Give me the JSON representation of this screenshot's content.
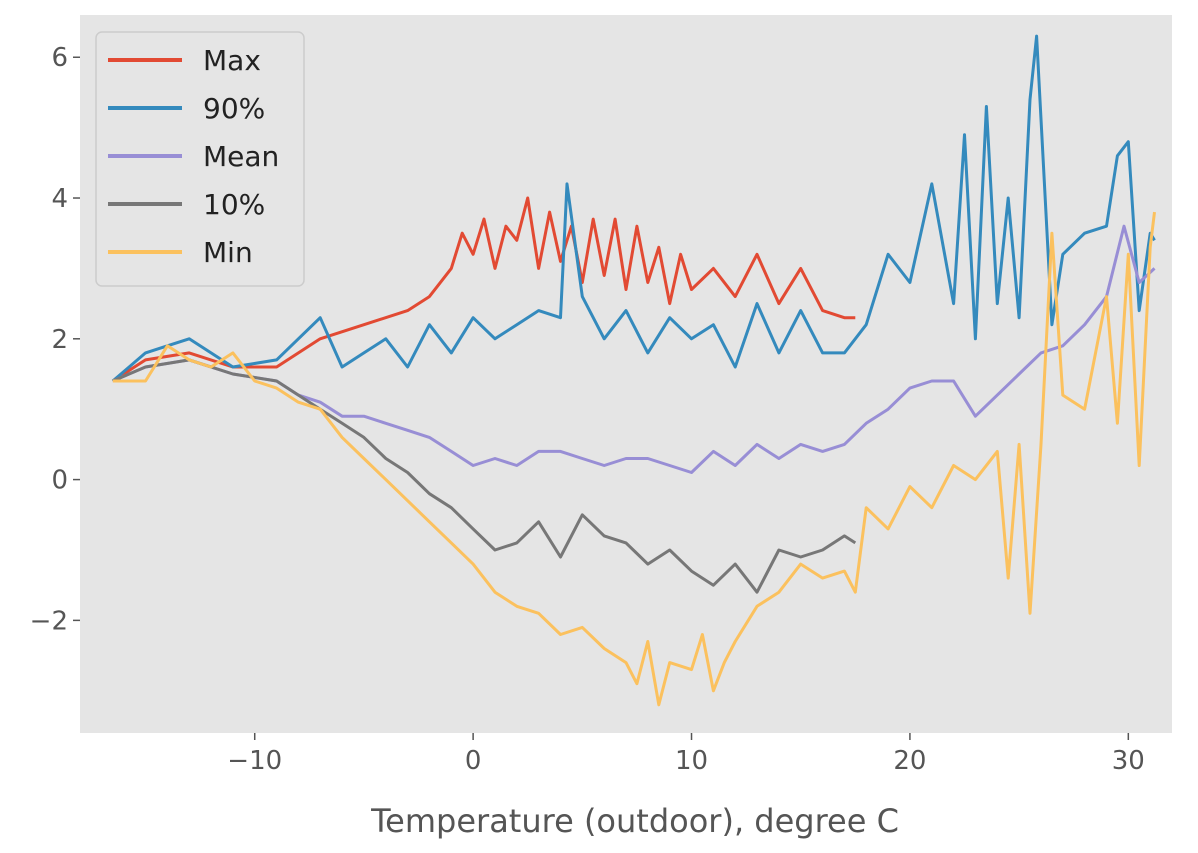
{
  "chart_data": {
    "type": "line",
    "title": "",
    "xlabel": "Temperature (outdoor), degree C",
    "ylabel": "",
    "xlim": [
      -18,
      32
    ],
    "ylim": [
      -3.6,
      6.6
    ],
    "xticks": [
      -10,
      0,
      10,
      20,
      30
    ],
    "yticks": [
      -2,
      0,
      2,
      4,
      6
    ],
    "xtick_labels": [
      "−10",
      "0",
      "10",
      "20",
      "30"
    ],
    "ytick_labels": [
      "−2",
      "0",
      "2",
      "4",
      "6"
    ],
    "grid": false,
    "legend": {
      "placement": "top-left",
      "entries": [
        "Max",
        "90%",
        "Mean",
        "10%",
        "Min"
      ]
    },
    "colors": {
      "background": "#e5e5e5",
      "Max": "#e24a33",
      "90%": "#348abd",
      "Mean": "#988ed5",
      "10%": "#777777",
      "Min": "#fbc15e"
    },
    "series": [
      {
        "name": "Max",
        "x": [
          -16.5,
          -15,
          -13,
          -11,
          -9,
          -7,
          -5,
          -3,
          -2,
          -1,
          -0.5,
          0,
          0.5,
          1,
          1.5,
          2,
          2.5,
          3,
          3.5,
          4,
          4.5,
          5,
          5.5,
          6,
          6.5,
          7,
          7.5,
          8,
          8.5,
          9,
          9.5,
          10,
          11,
          12,
          13,
          14,
          15,
          16,
          17,
          17.5
        ],
        "y": [
          1.4,
          1.7,
          1.8,
          1.6,
          1.6,
          2.0,
          2.2,
          2.4,
          2.6,
          3.0,
          3.5,
          3.2,
          3.7,
          3.0,
          3.6,
          3.4,
          4.0,
          3.0,
          3.8,
          3.1,
          3.6,
          2.8,
          3.7,
          2.9,
          3.7,
          2.7,
          3.6,
          2.8,
          3.3,
          2.5,
          3.2,
          2.7,
          3.0,
          2.6,
          3.2,
          2.5,
          3.0,
          2.4,
          2.3,
          2.3
        ]
      },
      {
        "name": "90%",
        "x": [
          -16.5,
          -15,
          -14,
          -13,
          -11,
          -9,
          -8,
          -7,
          -6,
          -5,
          -4,
          -3,
          -2,
          -1,
          0,
          1,
          2,
          3,
          4,
          4.3,
          5,
          6,
          7,
          8,
          9,
          10,
          11,
          12,
          13,
          14,
          15,
          16,
          17,
          18,
          19,
          20,
          21,
          22,
          22.5,
          23,
          23.5,
          24,
          24.5,
          25,
          25.5,
          25.8,
          26.5,
          27,
          28,
          29,
          29.5,
          30,
          30.5,
          31,
          31.2
        ],
        "y": [
          1.4,
          1.8,
          1.9,
          2.0,
          1.6,
          1.7,
          2.0,
          2.3,
          1.6,
          1.8,
          2.0,
          1.6,
          2.2,
          1.8,
          2.3,
          2.0,
          2.2,
          2.4,
          2.3,
          4.2,
          2.6,
          2.0,
          2.4,
          1.8,
          2.3,
          2.0,
          2.2,
          1.6,
          2.5,
          1.8,
          2.4,
          1.8,
          1.8,
          2.2,
          3.2,
          2.8,
          4.2,
          2.5,
          4.9,
          2.0,
          5.3,
          2.5,
          4.0,
          2.3,
          5.4,
          6.3,
          2.2,
          3.2,
          3.5,
          3.6,
          4.6,
          4.8,
          2.4,
          3.5,
          3.4
        ]
      },
      {
        "name": "Mean",
        "x": [
          -16.5,
          -15,
          -13,
          -11,
          -9,
          -8,
          -7,
          -6,
          -5,
          -4,
          -3,
          -2,
          -1,
          0,
          1,
          2,
          3,
          4,
          5,
          6,
          7,
          8,
          9,
          10,
          11,
          12,
          13,
          14,
          15,
          16,
          17,
          18,
          19,
          20,
          21,
          22,
          23,
          24,
          25,
          26,
          27,
          28,
          29,
          29.8,
          30.5,
          31.2
        ],
        "y": [
          1.4,
          1.6,
          1.7,
          1.5,
          1.4,
          1.2,
          1.1,
          0.9,
          0.9,
          0.8,
          0.7,
          0.6,
          0.4,
          0.2,
          0.3,
          0.2,
          0.4,
          0.4,
          0.3,
          0.2,
          0.3,
          0.3,
          0.2,
          0.1,
          0.4,
          0.2,
          0.5,
          0.3,
          0.5,
          0.4,
          0.5,
          0.8,
          1.0,
          1.3,
          1.4,
          1.4,
          0.9,
          1.2,
          1.5,
          1.8,
          1.9,
          2.2,
          2.6,
          3.6,
          2.8,
          3.0
        ]
      },
      {
        "name": "10%",
        "x": [
          -16.5,
          -15,
          -13,
          -11,
          -9,
          -8,
          -7,
          -6,
          -5,
          -4,
          -3,
          -2,
          -1,
          0,
          1,
          2,
          3,
          4,
          5,
          6,
          7,
          8,
          9,
          10,
          11,
          12,
          13,
          14,
          15,
          16,
          17,
          17.5
        ],
        "y": [
          1.4,
          1.6,
          1.7,
          1.5,
          1.4,
          1.2,
          1.0,
          0.8,
          0.6,
          0.3,
          0.1,
          -0.2,
          -0.4,
          -0.7,
          -1.0,
          -0.9,
          -0.6,
          -1.1,
          -0.5,
          -0.8,
          -0.9,
          -1.2,
          -1.0,
          -1.3,
          -1.5,
          -1.2,
          -1.6,
          -1.0,
          -1.1,
          -1.0,
          -0.8,
          -0.9
        ]
      },
      {
        "name": "Min",
        "x": [
          -16.5,
          -15,
          -14,
          -13,
          -12,
          -11,
          -10,
          -9,
          -8,
          -7,
          -6,
          -5,
          -4,
          -3,
          -2,
          -1,
          0,
          1,
          2,
          3,
          4,
          5,
          6,
          7,
          7.5,
          8,
          8.5,
          9,
          10,
          10.5,
          11,
          11.5,
          12,
          13,
          14,
          15,
          16,
          17,
          17.5,
          18,
          19,
          20,
          21,
          22,
          23,
          24,
          24.5,
          25,
          25.5,
          26,
          26.5,
          27,
          28,
          29,
          29.5,
          30,
          30.5,
          31,
          31.2
        ],
        "y": [
          1.4,
          1.4,
          1.9,
          1.7,
          1.6,
          1.8,
          1.4,
          1.3,
          1.1,
          1.0,
          0.6,
          0.3,
          0.0,
          -0.3,
          -0.6,
          -0.9,
          -1.2,
          -1.6,
          -1.8,
          -1.9,
          -2.2,
          -2.1,
          -2.4,
          -2.6,
          -2.9,
          -2.3,
          -3.2,
          -2.6,
          -2.7,
          -2.2,
          -3.0,
          -2.6,
          -2.3,
          -1.8,
          -1.6,
          -1.2,
          -1.4,
          -1.3,
          -1.6,
          -0.4,
          -0.7,
          -0.1,
          -0.4,
          0.2,
          0.0,
          0.4,
          -1.4,
          0.5,
          -1.9,
          0.5,
          3.5,
          1.2,
          1.0,
          2.6,
          0.8,
          3.2,
          0.2,
          3.3,
          3.8
        ]
      }
    ]
  }
}
